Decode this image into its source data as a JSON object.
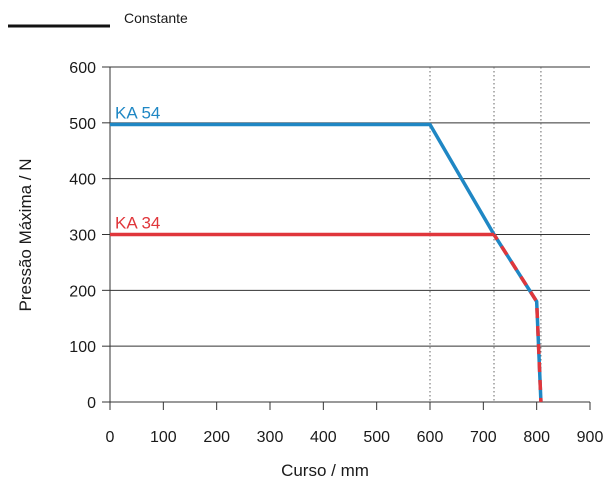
{
  "chart_data": {
    "type": "line",
    "xlabel": "Curso / mm",
    "ylabel": "Pressão Máxima / N",
    "xlim": [
      0,
      900
    ],
    "ylim": [
      0,
      600
    ],
    "xticks": [
      0,
      100,
      200,
      300,
      400,
      500,
      600,
      700,
      800,
      900
    ],
    "yticks": [
      0,
      100,
      200,
      300,
      400,
      500,
      600
    ],
    "grid": "horizontal",
    "ref_lines_x": [
      600,
      720,
      808
    ],
    "legend": {
      "label": "Constante",
      "color": "#111111",
      "placement": "top-left"
    },
    "series": [
      {
        "name": "KA 54",
        "color": "#1f87c4",
        "points": [
          [
            0,
            497
          ],
          [
            600,
            497
          ],
          [
            720,
            300
          ],
          [
            800,
            180
          ],
          [
            808,
            0
          ]
        ]
      },
      {
        "name": "KA 34",
        "color": "#e0363b",
        "points": [
          [
            0,
            300
          ],
          [
            720,
            300
          ],
          [
            800,
            180
          ],
          [
            808,
            0
          ]
        ]
      }
    ]
  }
}
